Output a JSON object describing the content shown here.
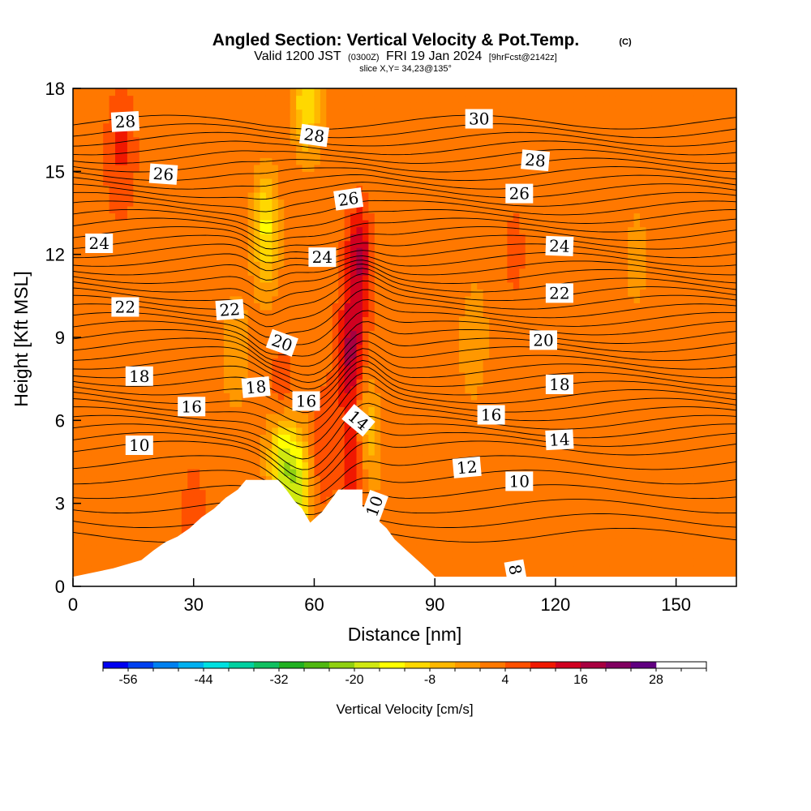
{
  "header": {
    "title": "Angled Section: Vertical Velocity & Pot.Temp.",
    "copyright": "(C)",
    "valid_prefix": "Valid 1200 JST",
    "valid_utc": "(0300Z)",
    "valid_date": "FRI 19 Jan 2024",
    "forecast": "[9hrFcst@2142z]",
    "slice": "slice X,Y= 34,23@135°"
  },
  "chart_data": {
    "type": "heatmap",
    "xlabel": "Distance [nm]",
    "ylabel": "Height [Kft MSL]",
    "xlim": [
      0,
      165
    ],
    "ylim": [
      0,
      18
    ],
    "x_ticks": [
      "0",
      "30",
      "60",
      "90",
      "120",
      "150"
    ],
    "y_ticks": [
      "0",
      "3",
      "6",
      "9",
      "12",
      "15",
      "18"
    ],
    "x_tick_values": [
      0,
      30,
      60,
      90,
      120,
      150
    ],
    "y_tick_values": [
      0,
      3,
      6,
      9,
      12,
      15,
      18
    ],
    "colorbar": {
      "label": "Vertical Velocity [cm/s]",
      "ticks": [
        "-56",
        "-44",
        "-32",
        "-20",
        "-8",
        "4",
        "16",
        "28"
      ],
      "tick_values": [
        -56,
        -44,
        -32,
        -20,
        -8,
        4,
        16,
        28
      ],
      "range": [
        -60,
        36
      ],
      "step": 4,
      "colors": [
        "#0000f0",
        "#0040f0",
        "#0080f0",
        "#00b0f0",
        "#00e0e0",
        "#00d0a0",
        "#10c060",
        "#20b020",
        "#50b810",
        "#90d010",
        "#d0e810",
        "#ffff00",
        "#ffd800",
        "#ffb800",
        "#ff9800",
        "#ff7800",
        "#ff5000",
        "#f01800",
        "#d00020",
        "#a80040",
        "#800060",
        "#600080"
      ]
    },
    "contour_labels": [
      {
        "text": "28",
        "x": 13,
        "y": 16.8,
        "angle": -3
      },
      {
        "text": "26",
        "x": 22.5,
        "y": 14.9,
        "angle": 4
      },
      {
        "text": "24",
        "x": 6.5,
        "y": 12.4,
        "angle": 0
      },
      {
        "text": "22",
        "x": 13,
        "y": 10.1,
        "angle": 0
      },
      {
        "text": "18",
        "x": 16.5,
        "y": 7.6,
        "angle": 0
      },
      {
        "text": "16",
        "x": 29.5,
        "y": 6.5,
        "angle": 0
      },
      {
        "text": "10",
        "x": 16.5,
        "y": 5.1,
        "angle": 0
      },
      {
        "text": "22",
        "x": 39,
        "y": 10.0,
        "angle": -4
      },
      {
        "text": "20",
        "x": 52,
        "y": 8.8,
        "angle": 20
      },
      {
        "text": "18",
        "x": 45.5,
        "y": 7.2,
        "angle": -5
      },
      {
        "text": "16",
        "x": 58,
        "y": 6.7,
        "angle": 0
      },
      {
        "text": "14",
        "x": 71,
        "y": 6.0,
        "angle": 40
      },
      {
        "text": "10",
        "x": 75,
        "y": 2.9,
        "angle": -70
      },
      {
        "text": "28",
        "x": 60,
        "y": 16.3,
        "angle": 8
      },
      {
        "text": "26",
        "x": 68.5,
        "y": 14.0,
        "angle": -8
      },
      {
        "text": "24",
        "x": 62,
        "y": 11.9,
        "angle": 0
      },
      {
        "text": "30",
        "x": 101,
        "y": 16.9,
        "angle": 0
      },
      {
        "text": "28",
        "x": 115,
        "y": 15.4,
        "angle": 5
      },
      {
        "text": "26",
        "x": 111,
        "y": 14.2,
        "angle": 0
      },
      {
        "text": "24",
        "x": 121,
        "y": 12.3,
        "angle": 2
      },
      {
        "text": "22",
        "x": 121,
        "y": 10.6,
        "angle": 0
      },
      {
        "text": "20",
        "x": 117,
        "y": 8.9,
        "angle": 0
      },
      {
        "text": "18",
        "x": 121,
        "y": 7.3,
        "angle": 0
      },
      {
        "text": "16",
        "x": 104,
        "y": 6.2,
        "angle": 0
      },
      {
        "text": "14",
        "x": 121,
        "y": 5.3,
        "angle": -3
      },
      {
        "text": "12",
        "x": 98,
        "y": 4.3,
        "angle": -5
      },
      {
        "text": "10",
        "x": 111,
        "y": 3.8,
        "angle": 0
      },
      {
        "text": "8",
        "x": 110,
        "y": 0.6,
        "angle": 80
      }
    ],
    "terrain_kft": [
      [
        0,
        0.35
      ],
      [
        10,
        0.65
      ],
      [
        17,
        0.95
      ],
      [
        20,
        1.3
      ],
      [
        23,
        1.6
      ],
      [
        26,
        1.8
      ],
      [
        29,
        2.1
      ],
      [
        32,
        2.5
      ],
      [
        35,
        2.8
      ],
      [
        38,
        3.2
      ],
      [
        41,
        3.5
      ],
      [
        43,
        3.85
      ],
      [
        51,
        3.85
      ],
      [
        53,
        3.5
      ],
      [
        55,
        3.1
      ],
      [
        57,
        2.8
      ],
      [
        59,
        2.3
      ],
      [
        62,
        2.7
      ],
      [
        66,
        3.5
      ],
      [
        72,
        3.5
      ],
      [
        72,
        2.9
      ],
      [
        75,
        2.5
      ],
      [
        78,
        2.1
      ],
      [
        80,
        1.7
      ],
      [
        83,
        1.3
      ],
      [
        86,
        0.9
      ],
      [
        89,
        0.5
      ],
      [
        90,
        0.35
      ],
      [
        165,
        0.35
      ]
    ],
    "updrafts": [
      {
        "x": 71,
        "y": 12.0,
        "w": 15
      },
      {
        "x": 69,
        "y": 8.5,
        "w": 14
      },
      {
        "x": 52,
        "y": 6.3,
        "w": 16
      },
      {
        "x": 70,
        "y": 4.6,
        "w": 12
      },
      {
        "x": 62,
        "y": 5.0,
        "w": 6
      },
      {
        "x": 12,
        "y": 16.0,
        "w": 6
      },
      {
        "x": 110,
        "y": 12.5,
        "w": 4
      },
      {
        "x": 30,
        "y": 2.2,
        "w": 5
      }
    ],
    "downdrafts": [
      {
        "x": 52,
        "y": 5.0,
        "w": -26
      },
      {
        "x": 56,
        "y": 3.5,
        "w": -18
      },
      {
        "x": 48,
        "y": 13.0,
        "w": -16
      },
      {
        "x": 58,
        "y": 17.5,
        "w": -14
      },
      {
        "x": 73,
        "y": 5.5,
        "w": -12
      },
      {
        "x": 40,
        "y": 8.5,
        "w": -6
      },
      {
        "x": 100,
        "y": 9.0,
        "w": -5
      },
      {
        "x": 140,
        "y": 12.0,
        "w": -4
      }
    ]
  }
}
